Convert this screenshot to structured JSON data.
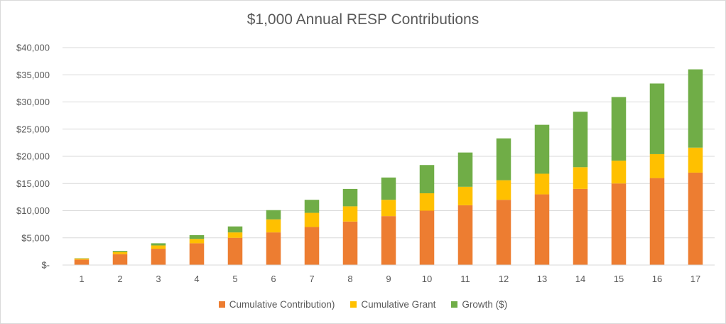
{
  "chart_data": {
    "type": "bar",
    "stacked": true,
    "title": "$1,000 Annual RESP Contributions",
    "xlabel": "",
    "ylabel": "",
    "ylim": [
      0,
      40000
    ],
    "y_ticks": [
      0,
      5000,
      10000,
      15000,
      20000,
      25000,
      30000,
      35000,
      40000
    ],
    "y_tick_labels": [
      "$-",
      "$5,000",
      "$10,000",
      "$15,000",
      "$20,000",
      "$25,000",
      "$30,000",
      "$35,000",
      "$40,000"
    ],
    "grid": true,
    "legend_position": "bottom",
    "categories": [
      "1",
      "2",
      "3",
      "4",
      "5",
      "6",
      "7",
      "8",
      "9",
      "10",
      "11",
      "12",
      "13",
      "14",
      "15",
      "16",
      "17"
    ],
    "series": [
      {
        "name": "Cumulative Contribution)",
        "color": "#ed7d31",
        "values": [
          1000,
          2000,
          3000,
          4000,
          5000,
          6000,
          7000,
          8000,
          9000,
          10000,
          11000,
          12000,
          13000,
          14000,
          15000,
          16000,
          17000
        ]
      },
      {
        "name": "Cumulative Grant",
        "color": "#ffc000",
        "values": [
          200,
          400,
          600,
          800,
          1000,
          2400,
          2600,
          2800,
          3000,
          3200,
          3400,
          3600,
          3800,
          4000,
          4200,
          4400,
          4600
        ]
      },
      {
        "name": "Growth ($)",
        "color": "#70ad47",
        "values": [
          50,
          200,
          400,
          700,
          1100,
          1700,
          2400,
          3200,
          4100,
          5200,
          6300,
          7700,
          9000,
          10200,
          11700,
          13000,
          14400
        ]
      }
    ]
  }
}
